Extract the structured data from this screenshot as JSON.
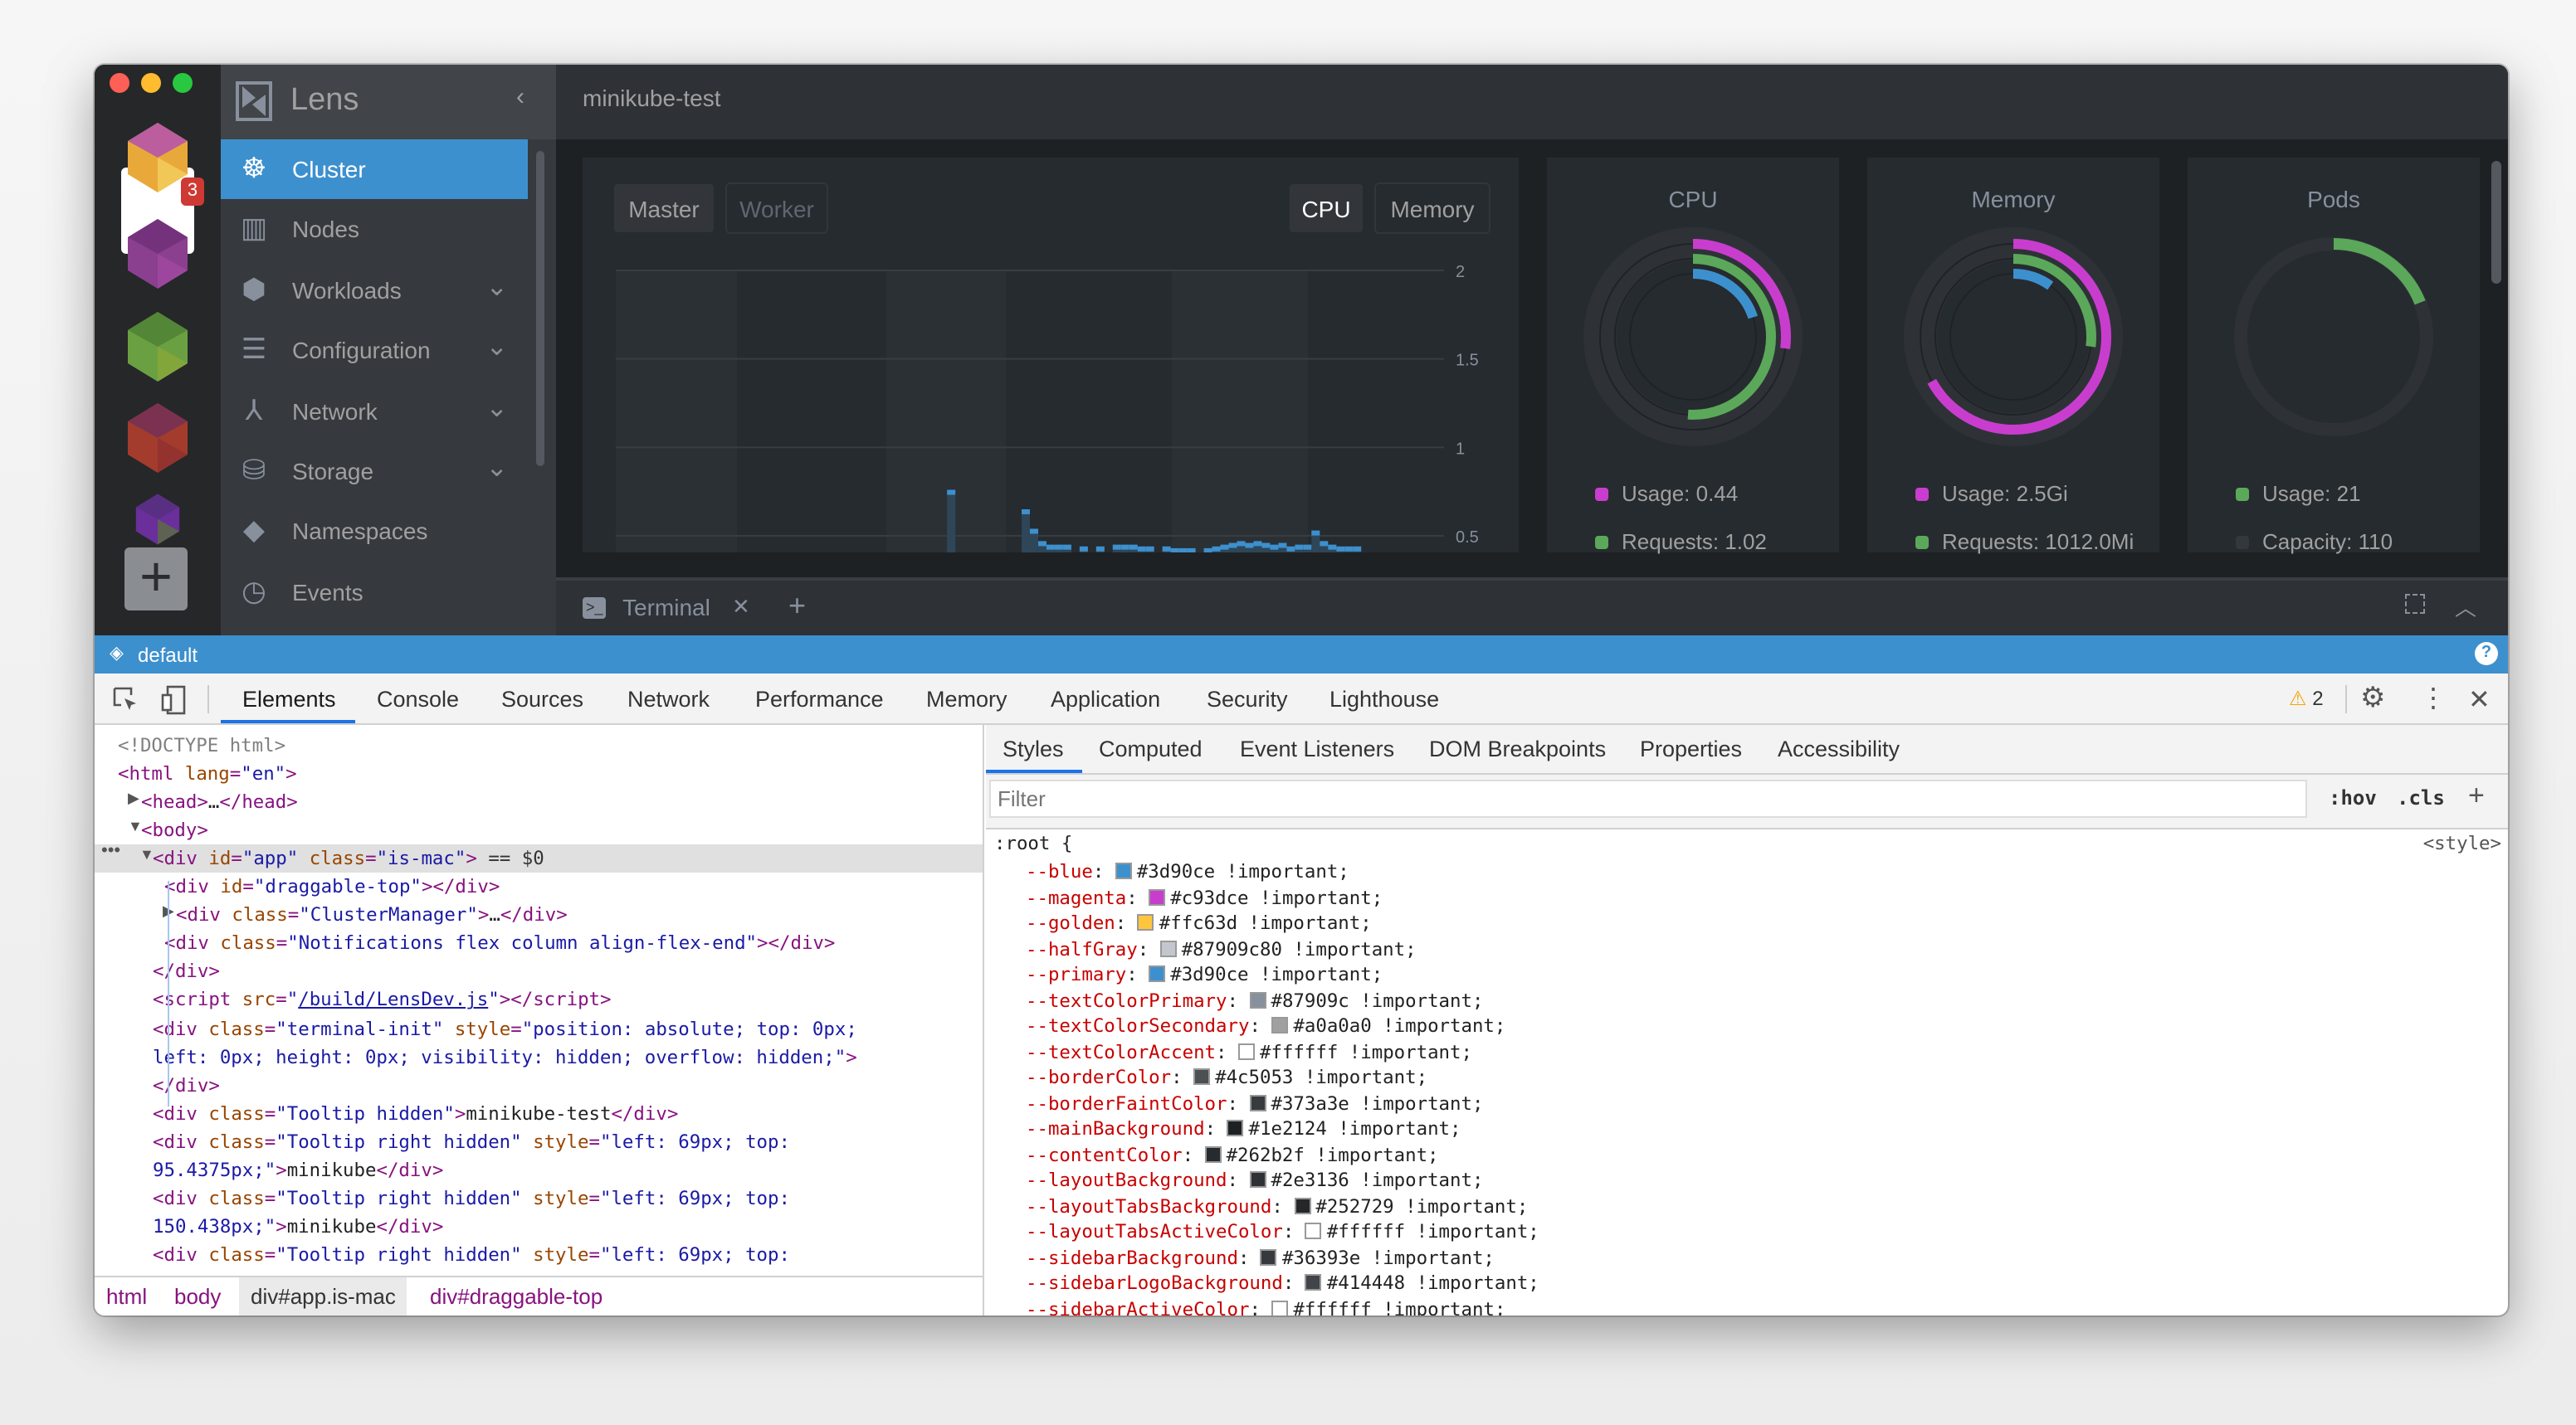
{
  "window": {
    "traffic_lights": [
      "#fe5f57",
      "#febc2e",
      "#28c840"
    ]
  },
  "clusters": {
    "badge": "3",
    "items": [
      {
        "colors": [
          "#e9a93a",
          "#b04bb8",
          "#f2d060"
        ]
      },
      {
        "colors": [
          "#8a3f8f",
          "#6e3078",
          "#a04aa0"
        ]
      },
      {
        "colors": [
          "#6aa042",
          "#4e7f33",
          "#8aa83a"
        ]
      },
      {
        "colors": [
          "#a33c2c",
          "#6f2f5a",
          "#8f2f2f"
        ]
      },
      {
        "colors": [
          "#6a2f9a",
          "#55307e",
          "#5b6f40"
        ]
      }
    ],
    "add_label": "+"
  },
  "sidebar": {
    "logo": "Lens",
    "items": [
      {
        "label": "Cluster",
        "icon": "helm-wheel-icon",
        "active": true
      },
      {
        "label": "Nodes",
        "icon": "server-icon"
      },
      {
        "label": "Workloads",
        "icon": "cubes-icon",
        "expandable": true
      },
      {
        "label": "Configuration",
        "icon": "list-icon",
        "expandable": true
      },
      {
        "label": "Network",
        "icon": "network-icon",
        "expandable": true
      },
      {
        "label": "Storage",
        "icon": "database-icon",
        "expandable": true
      },
      {
        "label": "Namespaces",
        "icon": "layers-icon"
      },
      {
        "label": "Events",
        "icon": "clock-icon"
      }
    ]
  },
  "header": {
    "title": "minikube-test"
  },
  "chart": {
    "node_tabs": [
      "Master",
      "Worker"
    ],
    "active_node_tab": "Master",
    "metric_tabs": [
      "CPU",
      "Memory"
    ],
    "active_metric_tab": "CPU"
  },
  "chart_data": {
    "type": "bar",
    "ylim": [
      0.4,
      2
    ],
    "yticks": [
      "2",
      "1.5",
      "1",
      "0.5"
    ],
    "ytick_values": [
      2,
      1.5,
      1,
      0.5
    ],
    "grid": true,
    "color": "#3d90ce",
    "start_index": 40,
    "values": [
      0.76,
      null,
      null,
      null,
      null,
      null,
      null,
      null,
      null,
      0.65,
      0.54,
      0.47,
      0.45,
      0.45,
      0.45,
      null,
      0.44,
      null,
      0.44,
      null,
      0.45,
      0.45,
      0.45,
      0.44,
      0.44,
      null,
      0.44,
      0.43,
      0.43,
      0.43,
      null,
      0.43,
      0.44,
      0.45,
      0.46,
      0.47,
      0.46,
      0.47,
      0.46,
      0.45,
      0.46,
      0.44,
      0.45,
      0.45,
      0.53,
      0.47,
      0.45,
      0.44,
      0.44,
      0.44
    ]
  },
  "gauges": [
    {
      "title": "CPU",
      "rings": [
        {
          "color": "#c93dce",
          "fraction": 0.27
        },
        {
          "color": "#5ba85a",
          "fraction": 0.51
        },
        {
          "color": "#3d90ce",
          "fraction": 0.2
        }
      ],
      "legend": [
        {
          "color": "#c93dce",
          "label": "Usage: 0.44"
        },
        {
          "color": "#5ba85a",
          "label": "Requests: 1.02"
        }
      ]
    },
    {
      "title": "Memory",
      "rings": [
        {
          "color": "#c93dce",
          "fraction": 0.67
        },
        {
          "color": "#5ba85a",
          "fraction": 0.27
        },
        {
          "color": "#3d90ce",
          "fraction": 0.1
        }
      ],
      "legend": [
        {
          "color": "#c93dce",
          "label": "Usage: 2.5Gi"
        },
        {
          "color": "#5ba85a",
          "label": "Requests: 1012.0Mi"
        }
      ]
    },
    {
      "title": "Pods",
      "rings": [
        {
          "color": "#5ba85a",
          "fraction": 0.19
        }
      ],
      "legend": [
        {
          "color": "#5ba85a",
          "label": "Usage: 21"
        },
        {
          "color": "#34373c",
          "label": "Capacity: 110"
        }
      ]
    }
  ],
  "terminal": {
    "tab_label": "Terminal",
    "close": "✕",
    "add": "+"
  },
  "status_bar": {
    "namespace": "default",
    "help": "?"
  },
  "devtools": {
    "tabs": [
      "Elements",
      "Console",
      "Sources",
      "Network",
      "Performance",
      "Memory",
      "Application",
      "Security",
      "Lighthouse"
    ],
    "active_tab": "Elements",
    "warnings": "2",
    "elements_lines": [
      {
        "indent": 0,
        "text": "<!DOCTYPE html>",
        "doctype": true
      },
      {
        "indent": 0,
        "text": "<html lang=\"en\">"
      },
      {
        "indent": 1,
        "arrow": "▶",
        "text": "<head>…</head>"
      },
      {
        "indent": 1,
        "arrow": "▼",
        "text": "<body>"
      },
      {
        "indent": 2,
        "arrow": "▼",
        "text": "<div id=\"app\" class=\"is-mac\">",
        "suffix": " == $0",
        "selected": true
      },
      {
        "indent": 4,
        "text": "<div id=\"draggable-top\"></div>"
      },
      {
        "indent": 4,
        "arrow": "▶",
        "text": "<div class=\"ClusterManager\">…</div>"
      },
      {
        "indent": 4,
        "text": "<div class=\"Notifications flex column align-flex-end\"></div>"
      },
      {
        "indent": 3,
        "text": "</div>"
      },
      {
        "indent": 3,
        "text": "<script src=\"/build/LensDev.js\"></script>",
        "link": "/build/LensDev.js"
      },
      {
        "indent": 3,
        "text": "<div class=\"terminal-init\" style=\"position: absolute; top: 0px;"
      },
      {
        "indent": 3,
        "text": "left: 0px; height: 0px; visibility: hidden; overflow: hidden;\">",
        "cont": true
      },
      {
        "indent": 3,
        "text": "</div>"
      },
      {
        "indent": 3,
        "text": "<div class=\"Tooltip hidden\">minikube-test</div>"
      },
      {
        "indent": 3,
        "text": "<div class=\"Tooltip right hidden\" style=\"left: 69px; top:"
      },
      {
        "indent": 3,
        "text": "95.4375px;\">minikube</div>",
        "cont": true
      },
      {
        "indent": 3,
        "text": "<div class=\"Tooltip right hidden\" style=\"left: 69px; top:"
      },
      {
        "indent": 3,
        "text": "150.438px;\">minikube</div>",
        "cont": true
      },
      {
        "indent": 3,
        "text": "<div class=\"Tooltip right hidden\" style=\"left: 69px; top:"
      }
    ],
    "breadcrumbs": [
      "html",
      "body",
      "div#app.is-mac",
      "div#draggable-top"
    ],
    "selected_breadcrumb": "div#app.is-mac",
    "styles_tabs": [
      "Styles",
      "Computed",
      "Event Listeners",
      "DOM Breakpoints",
      "Properties",
      "Accessibility"
    ],
    "filter_placeholder": "Filter",
    "hov": ":hov",
    "cls": ".cls",
    "add": "+",
    "selector": ":root {",
    "source": "<style>",
    "properties": [
      {
        "name": "--blue",
        "value": "#3d90ce"
      },
      {
        "name": "--magenta",
        "value": "#c93dce"
      },
      {
        "name": "--golden",
        "value": "#ffc63d"
      },
      {
        "name": "--halfGray",
        "value": "#87909c80"
      },
      {
        "name": "--primary",
        "value": "#3d90ce"
      },
      {
        "name": "--textColorPrimary",
        "value": "#87909c"
      },
      {
        "name": "--textColorSecondary",
        "value": "#a0a0a0"
      },
      {
        "name": "--textColorAccent",
        "value": "#ffffff"
      },
      {
        "name": "--borderColor",
        "value": "#4c5053"
      },
      {
        "name": "--borderFaintColor",
        "value": "#373a3e"
      },
      {
        "name": "--mainBackground",
        "value": "#1e2124"
      },
      {
        "name": "--contentColor",
        "value": "#262b2f"
      },
      {
        "name": "--layoutBackground",
        "value": "#2e3136"
      },
      {
        "name": "--layoutTabsBackground",
        "value": "#252729"
      },
      {
        "name": "--layoutTabsActiveColor",
        "value": "#ffffff"
      },
      {
        "name": "--sidebarBackground",
        "value": "#36393e"
      },
      {
        "name": "--sidebarLogoBackground",
        "value": "#414448"
      },
      {
        "name": "--sidebarActiveColor",
        "value": "#ffffff"
      }
    ],
    "important": "!important;"
  }
}
